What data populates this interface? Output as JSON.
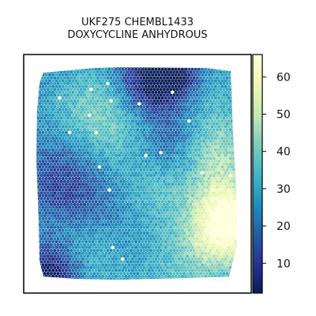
{
  "title_lines": [
    "UKF275 CHEMBL1433",
    "DOXYCYCLINE ANHYDROUS"
  ],
  "colormap": "YlGnBu",
  "colormap_stops": [
    "#081d58",
    "#253494",
    "#225ea8",
    "#1d91c0",
    "#41b6c4",
    "#7fcdbb",
    "#c7e9b4",
    "#edf8b1",
    "#ffffd9"
  ],
  "chart_data": {
    "type": "heatmap",
    "subtype": "hexagonal spatial spot map",
    "title": "UKF275 CHEMBL1433\nDOXYCYCLINE ANHYDROUS",
    "xlabel": "",
    "ylabel": "",
    "axes_ticks": false,
    "grid": false,
    "colorbar": {
      "position": "right",
      "range": [
        2,
        66
      ],
      "ticks": [
        10,
        20,
        30,
        40,
        50,
        60
      ],
      "tick_labels": [
        "10",
        "20",
        "30",
        "40",
        "50",
        "60"
      ]
    },
    "value_summary": {
      "low_regions": [
        "top-center",
        "bottom-left corner",
        "left-middle"
      ],
      "high_regions": [
        "right edge",
        "bottom-right",
        "upper-left-center"
      ],
      "typical_value": 25
    }
  }
}
